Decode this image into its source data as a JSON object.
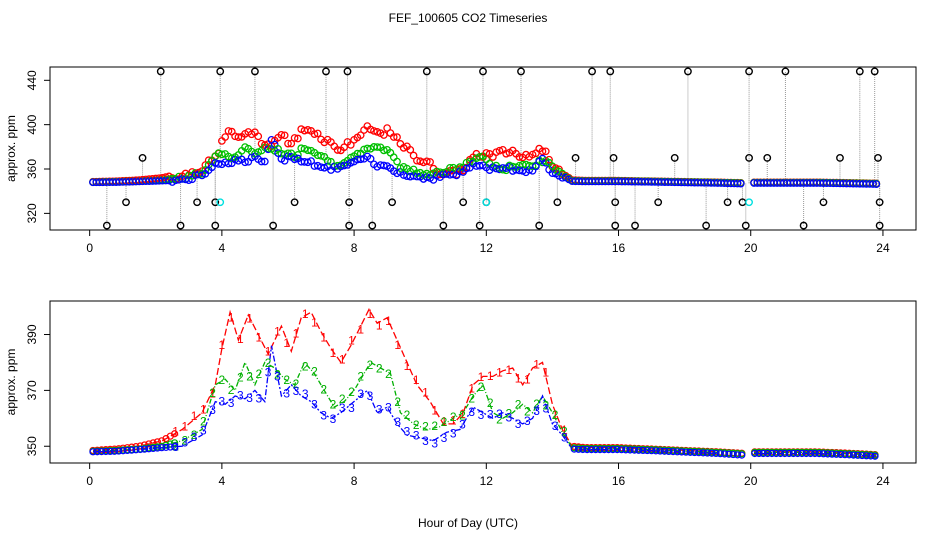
{
  "title": "FEF_100605  CO2 Timeseries",
  "xlabel": "Hour of Day (UTC)",
  "colors": {
    "series1": "#ff0000",
    "series2": "#00c000",
    "series3": "#0000ff",
    "raw": "#000000",
    "calib": "#00e0e0",
    "connector": "#999999"
  },
  "chart_data": [
    {
      "type": "scatter",
      "name": "top",
      "ylabel": "approx. ppm",
      "xlim": [
        -1.2,
        25
      ],
      "ylim": [
        305,
        452
      ],
      "xticks": [
        0,
        4,
        8,
        12,
        16,
        20,
        24
      ],
      "yticks": [
        320,
        360,
        400,
        440
      ],
      "series_names": [
        "1",
        "2",
        "3"
      ],
      "markers": "open circles",
      "low_spikes_x": [
        0.52,
        2.75,
        3.8,
        5.55,
        7.85,
        8.55,
        10.7,
        11.8,
        13.6,
        15.9,
        16.5,
        18.65,
        19.85,
        21.6,
        23.9
      ],
      "high_spikes_x": [
        2.15,
        3.95,
        5.0,
        7.15,
        7.8,
        10.2,
        11.9,
        13.05,
        15.2,
        15.75,
        18.1,
        19.95,
        21.05,
        23.3,
        23.75
      ],
      "mid_raw": [
        {
          "x": 1.1,
          "y": 330
        },
        {
          "x": 1.6,
          "y": 370
        },
        {
          "x": 3.25,
          "y": 330
        },
        {
          "x": 3.8,
          "y": 330
        },
        {
          "x": 6.2,
          "y": 330
        },
        {
          "x": 7.85,
          "y": 330
        },
        {
          "x": 9.15,
          "y": 330
        },
        {
          "x": 11.3,
          "y": 330
        },
        {
          "x": 12.0,
          "y": 330
        },
        {
          "x": 14.15,
          "y": 330
        },
        {
          "x": 14.7,
          "y": 370
        },
        {
          "x": 15.85,
          "y": 370
        },
        {
          "x": 15.9,
          "y": 330
        },
        {
          "x": 17.2,
          "y": 330
        },
        {
          "x": 17.7,
          "y": 370
        },
        {
          "x": 19.3,
          "y": 330
        },
        {
          "x": 19.95,
          "y": 370
        },
        {
          "x": 19.75,
          "y": 330
        },
        {
          "x": 20.5,
          "y": 370
        },
        {
          "x": 22.2,
          "y": 330
        },
        {
          "x": 22.7,
          "y": 370
        },
        {
          "x": 23.85,
          "y": 370
        },
        {
          "x": 23.9,
          "y": 330
        }
      ],
      "calibration_points": [
        {
          "x": 3.95,
          "y": 330
        },
        {
          "x": 12.0,
          "y": 330
        },
        {
          "x": 19.95,
          "y": 330
        }
      ]
    },
    {
      "type": "line",
      "name": "bottom",
      "ylabel": "approx. ppm",
      "xlim": [
        -1.2,
        25
      ],
      "ylim": [
        344,
        402
      ],
      "xticks": [
        0,
        4,
        8,
        12,
        16,
        20,
        24
      ],
      "yticks": [
        350,
        370,
        390
      ],
      "markers": "series number symbols",
      "series": [
        {
          "name": "1",
          "color": "#ff0000",
          "points": [
            [
              0.1,
              348.5
            ],
            [
              0.8,
              349
            ],
            [
              1.5,
              350
            ],
            [
              2.2,
              352
            ],
            [
              2.8,
              356
            ],
            [
              3.4,
              362
            ],
            [
              3.8,
              372
            ],
            [
              4.0,
              385
            ],
            [
              4.25,
              398
            ],
            [
              4.5,
              388
            ],
            [
              4.8,
              397
            ],
            [
              5.1,
              390
            ],
            [
              5.4,
              383
            ],
            [
              5.8,
              393
            ],
            [
              6.1,
              384
            ],
            [
              6.4,
              396
            ],
            [
              6.7,
              398
            ],
            [
              7.0,
              391
            ],
            [
              7.3,
              385
            ],
            [
              7.6,
              380
            ],
            [
              7.9,
              386
            ],
            [
              8.2,
              393
            ],
            [
              8.45,
              399
            ],
            [
              8.7,
              394
            ],
            [
              9.0,
              396
            ],
            [
              9.3,
              388
            ],
            [
              9.6,
              380
            ],
            [
              9.9,
              372
            ],
            [
              10.3,
              366
            ],
            [
              10.7,
              358
            ],
            [
              11.0,
              358
            ],
            [
              11.3,
              362
            ],
            [
              11.6,
              372
            ],
            [
              11.9,
              375
            ],
            [
              12.2,
              375
            ],
            [
              12.5,
              377
            ],
            [
              12.8,
              378
            ],
            [
              13.1,
              372
            ],
            [
              13.4,
              378
            ],
            [
              13.7,
              380
            ],
            [
              14.0,
              365
            ],
            [
              14.3,
              356
            ],
            [
              14.6,
              350
            ],
            [
              15.0,
              349.5
            ],
            [
              15.6,
              349.5
            ],
            [
              16.0,
              349.5
            ],
            [
              17.0,
              349
            ],
            [
              18.0,
              348.5
            ],
            [
              19.0,
              348
            ],
            [
              19.75,
              347.5
            ],
            [
              20.1,
              348
            ],
            [
              21.0,
              348
            ],
            [
              22.0,
              348
            ],
            [
              23.0,
              347.5
            ],
            [
              23.8,
              347
            ]
          ]
        },
        {
          "name": "2",
          "color": "#00b000",
          "points": [
            [
              0.1,
              348.2
            ],
            [
              0.8,
              348.5
            ],
            [
              1.5,
              349
            ],
            [
              2.2,
              350
            ],
            [
              2.8,
              352
            ],
            [
              3.4,
              356
            ],
            [
              3.8,
              372
            ],
            [
              4.1,
              374
            ],
            [
              4.4,
              370
            ],
            [
              4.7,
              380
            ],
            [
              5.0,
              372
            ],
            [
              5.3,
              380
            ],
            [
              5.6,
              378
            ],
            [
              5.9,
              374
            ],
            [
              6.2,
              372
            ],
            [
              6.5,
              380
            ],
            [
              6.8,
              376
            ],
            [
              7.1,
              370
            ],
            [
              7.4,
              364
            ],
            [
              7.7,
              366
            ],
            [
              8.0,
              370
            ],
            [
              8.3,
              376
            ],
            [
              8.5,
              380
            ],
            [
              8.8,
              378
            ],
            [
              9.1,
              376
            ],
            [
              9.4,
              362
            ],
            [
              9.8,
              358
            ],
            [
              10.2,
              356
            ],
            [
              10.6,
              357
            ],
            [
              11.0,
              360
            ],
            [
              11.3,
              362
            ],
            [
              11.6,
              368
            ],
            [
              11.9,
              372
            ],
            [
              12.2,
              362
            ],
            [
              12.5,
              360
            ],
            [
              12.8,
              362
            ],
            [
              13.1,
              365
            ],
            [
              13.4,
              362
            ],
            [
              13.7,
              368
            ],
            [
              14.0,
              362
            ],
            [
              14.3,
              355
            ],
            [
              14.6,
              349.5
            ],
            [
              15.0,
              349.2
            ],
            [
              15.6,
              349.2
            ],
            [
              16.0,
              349.2
            ],
            [
              17.0,
              348.8
            ],
            [
              18.0,
              348.3
            ],
            [
              19.0,
              347.8
            ],
            [
              19.75,
              347.3
            ],
            [
              20.1,
              347.8
            ],
            [
              21.0,
              347.8
            ],
            [
              22.0,
              347.8
            ],
            [
              23.0,
              347.3
            ],
            [
              23.8,
              346.8
            ]
          ]
        },
        {
          "name": "3",
          "color": "#0000ff",
          "points": [
            [
              0.1,
              348
            ],
            [
              0.8,
              348.2
            ],
            [
              1.5,
              348.8
            ],
            [
              2.2,
              349.5
            ],
            [
              2.8,
              350
            ],
            [
              3.4,
              354
            ],
            [
              3.8,
              366
            ],
            [
              4.1,
              365
            ],
            [
              4.4,
              368
            ],
            [
              4.7,
              367
            ],
            [
              5.0,
              370
            ],
            [
              5.3,
              366
            ],
            [
              5.5,
              386
            ],
            [
              5.8,
              368
            ],
            [
              6.1,
              372
            ],
            [
              6.4,
              368
            ],
            [
              6.7,
              366
            ],
            [
              7.0,
              362
            ],
            [
              7.3,
              360
            ],
            [
              7.6,
              362
            ],
            [
              7.9,
              365
            ],
            [
              8.2,
              368
            ],
            [
              8.4,
              370
            ],
            [
              8.7,
              362
            ],
            [
              9.0,
              364
            ],
            [
              9.3,
              358
            ],
            [
              9.6,
              354
            ],
            [
              10.0,
              353
            ],
            [
              10.4,
              352
            ],
            [
              10.8,
              355
            ],
            [
              11.2,
              356
            ],
            [
              11.6,
              364
            ],
            [
              11.9,
              362
            ],
            [
              12.2,
              360
            ],
            [
              12.5,
              362
            ],
            [
              12.8,
              360
            ],
            [
              13.1,
              358
            ],
            [
              13.4,
              360
            ],
            [
              13.7,
              368
            ],
            [
              14.0,
              358
            ],
            [
              14.3,
              354
            ],
            [
              14.6,
              349
            ],
            [
              15.0,
              348.8
            ],
            [
              15.6,
              348.8
            ],
            [
              16.0,
              348.8
            ],
            [
              17.0,
              348.4
            ],
            [
              18.0,
              347.9
            ],
            [
              19.0,
              347.4
            ],
            [
              19.75,
              346.8
            ],
            [
              20.1,
              347.4
            ],
            [
              21.0,
              347.4
            ],
            [
              22.0,
              347.4
            ],
            [
              23.0,
              346.9
            ],
            [
              23.8,
              346.4
            ]
          ]
        }
      ]
    }
  ]
}
